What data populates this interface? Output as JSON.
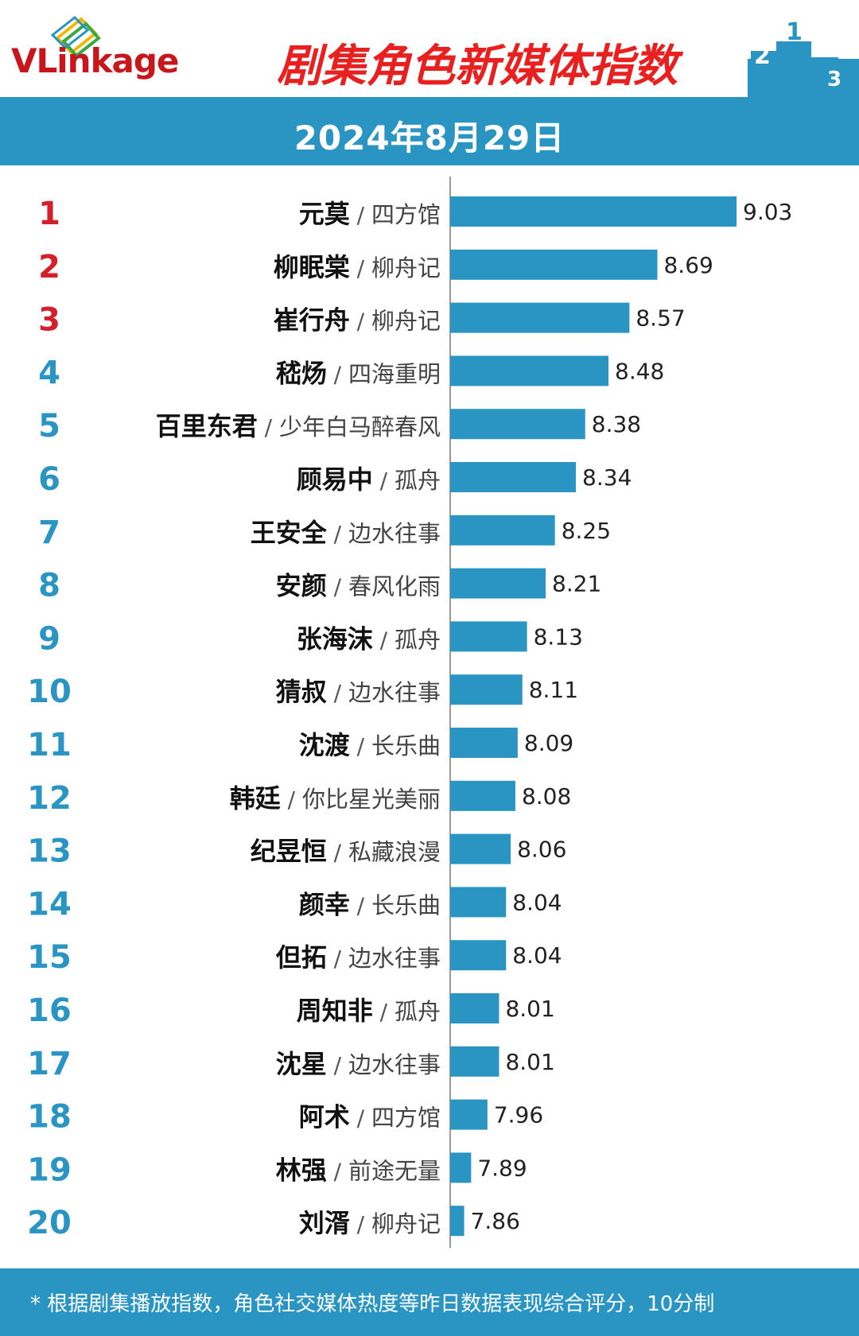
{
  "header": {
    "logo_text": "VLinkage",
    "title": "剧集角色新媒体指数",
    "date": "2024年8月29日"
  },
  "footer": {
    "note": "* 根据剧集播放指数，角色社交媒体热度等昨日数据表现综合评分，10分制"
  },
  "colors": {
    "bar": "#2a95c3",
    "rank_top3": "#d4202b",
    "rank_other": "#2a95c3",
    "banner": "#2a95c3",
    "title": "#e8201f"
  },
  "chart_data": {
    "type": "bar",
    "orientation": "horizontal",
    "ranks": [
      "1",
      "2",
      "3",
      "4",
      "5",
      "6",
      "7",
      "8",
      "9",
      "10",
      "11",
      "12",
      "13",
      "14",
      "15",
      "16",
      "17",
      "18",
      "19",
      "20"
    ],
    "characters": [
      "元莫",
      "柳眠棠",
      "崔行舟",
      "嵇炀",
      "百里东君",
      "顾易中",
      "王安全",
      "安颜",
      "张海沫",
      "猜叔",
      "沈渡",
      "韩廷",
      "纪昱恒",
      "颜幸",
      "但拓",
      "周知非",
      "沈星",
      "阿术",
      "林强",
      "刘湑"
    ],
    "shows": [
      "四方馆",
      "柳舟记",
      "柳舟记",
      "四海重明",
      "少年白马醉春风",
      "孤舟",
      "边水往事",
      "春风化雨",
      "孤舟",
      "边水往事",
      "长乐曲",
      "你比星光美丽",
      "私藏浪漫",
      "长乐曲",
      "边水往事",
      "孤舟",
      "边水往事",
      "四方馆",
      "前途无量",
      "柳舟记"
    ],
    "values": [
      9.03,
      8.69,
      8.57,
      8.48,
      8.38,
      8.34,
      8.25,
      8.21,
      8.13,
      8.11,
      8.09,
      8.08,
      8.06,
      8.04,
      8.04,
      8.01,
      8.01,
      7.96,
      7.89,
      7.86
    ],
    "value_labels": [
      "9.03",
      "8.69",
      "8.57",
      "8.48",
      "8.38",
      "8.34",
      "8.25",
      "8.21",
      "8.13",
      "8.11",
      "8.09",
      "8.08",
      "8.06",
      "8.04",
      "8.04",
      "8.01",
      "8.01",
      "7.96",
      "7.89",
      "7.86"
    ],
    "separator": "/"
  }
}
